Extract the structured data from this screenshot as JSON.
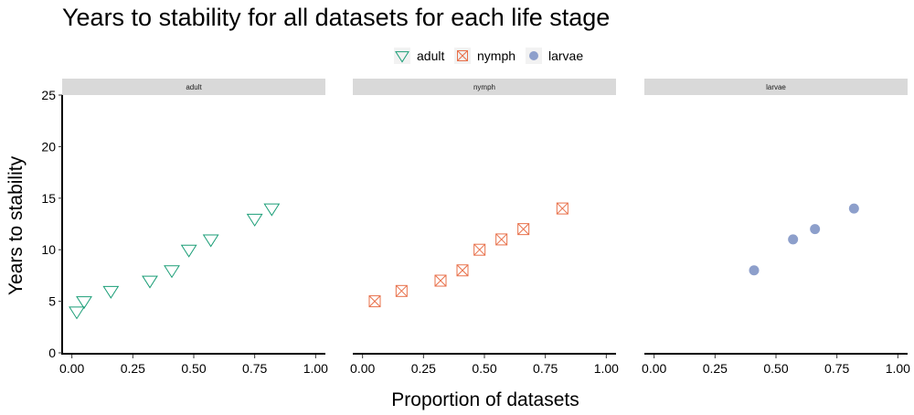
{
  "chart_data": {
    "type": "scatter",
    "title": "Years to stability for all datasets for each life stage",
    "xlabel": "Proportion of datasets",
    "ylabel": "Years to stability",
    "xlim": [
      -0.04,
      1.04
    ],
    "ylim": [
      0,
      25
    ],
    "x_ticks": [
      "0.00",
      "0.25",
      "0.50",
      "0.75",
      "1.00"
    ],
    "x_tick_values": [
      0,
      0.25,
      0.5,
      0.75,
      1.0
    ],
    "y_ticks": [
      "0",
      "5",
      "10",
      "15",
      "20",
      "25"
    ],
    "y_tick_values": [
      0,
      5,
      10,
      15,
      20,
      25
    ],
    "grid": false,
    "legend_placement": "top",
    "facets": [
      {
        "strip": "adult",
        "series": [
          {
            "name": "adult",
            "marker": "triangle-down-open",
            "color": "#1b9e77",
            "x": [
              0.02,
              0.05,
              0.16,
              0.32,
              0.41,
              0.48,
              0.57,
              0.75,
              0.82
            ],
            "y": [
              4,
              5,
              6,
              7,
              8,
              10,
              11,
              13,
              14
            ]
          }
        ]
      },
      {
        "strip": "nymph",
        "series": [
          {
            "name": "nymph",
            "marker": "square-x-open",
            "color": "#e8704a",
            "x": [
              0.05,
              0.16,
              0.32,
              0.41,
              0.48,
              0.57,
              0.66,
              0.82
            ],
            "y": [
              5,
              6,
              7,
              8,
              10,
              11,
              12,
              14
            ]
          }
        ]
      },
      {
        "strip": "larvae",
        "series": [
          {
            "name": "larvae",
            "marker": "circle-filled",
            "color": "#8d9fcb",
            "x": [
              0.41,
              0.57,
              0.66,
              0.82
            ],
            "y": [
              8,
              11,
              12,
              14
            ]
          }
        ]
      }
    ],
    "legend": [
      {
        "label": "adult",
        "marker": "triangle-down-open",
        "color": "#1b9e77"
      },
      {
        "label": "nymph",
        "marker": "square-x-open",
        "color": "#e8704a"
      },
      {
        "label": "larvae",
        "marker": "circle-filled",
        "color": "#8d9fcb"
      }
    ]
  }
}
